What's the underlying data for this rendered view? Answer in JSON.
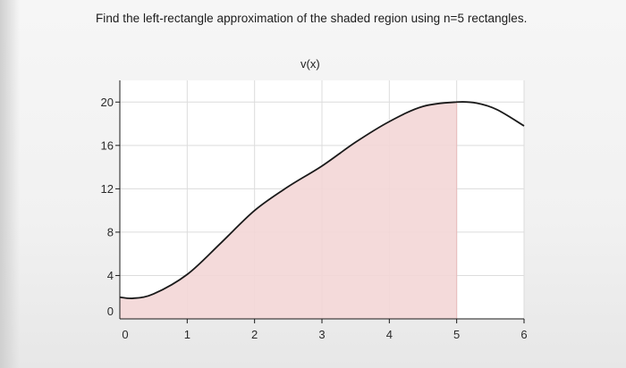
{
  "question": {
    "text": "Find the left-rectangle approximation of the shaded region using n=5 rectangles."
  },
  "chart_data": {
    "type": "area",
    "title": "v(x)",
    "xlabel": "",
    "ylabel": "",
    "xlim": [
      0,
      6
    ],
    "ylim": [
      0,
      22
    ],
    "x_ticks": [
      "0",
      "1",
      "2",
      "3",
      "4",
      "5",
      "6"
    ],
    "y_ticks": [
      "0",
      "4",
      "8",
      "12",
      "16",
      "20"
    ],
    "grid": true,
    "shaded_interval": [
      0,
      5
    ],
    "series": [
      {
        "x": [
          0,
          0.2,
          0.5,
          1,
          1.5,
          2,
          2.5,
          3,
          3.5,
          4,
          4.5,
          5,
          5.3,
          5.6,
          6
        ],
        "y": [
          2.0,
          1.9,
          2.3,
          4.1,
          7.0,
          10.0,
          12.2,
          14.1,
          16.3,
          18.2,
          19.6,
          20.0,
          19.9,
          19.3,
          17.8
        ]
      }
    ],
    "colors": {
      "shade": "#f3d6d6",
      "line": "#1a1a1a",
      "grid": "#dcdcdc"
    }
  }
}
